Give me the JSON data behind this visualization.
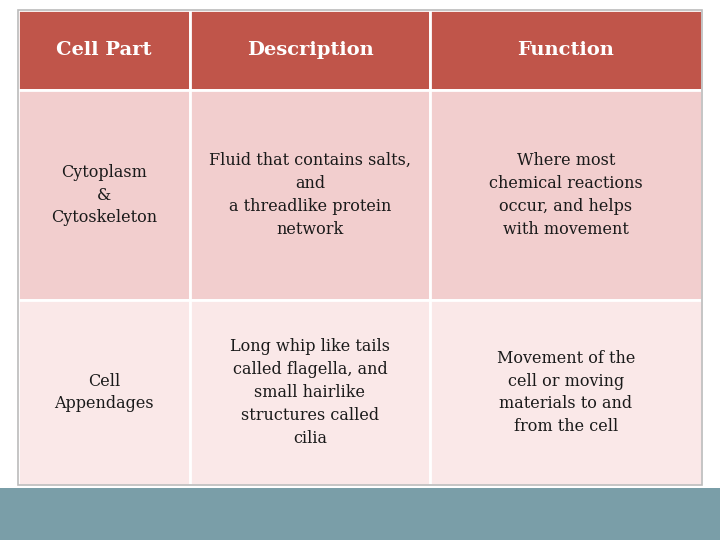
{
  "header_bg": "#C0554A",
  "header_text_color": "#FFFFFF",
  "row1_bg": "#F2CECE",
  "row2_bg": "#FAE8E8",
  "body_text_color": "#1A1A1A",
  "border_color": "#FFFFFF",
  "bottom_bar_color": "#7A9EA8",
  "outer_border_color": "#BBBBBB",
  "figure_bg": "#FFFFFF",
  "header_text": [
    "Cell Part",
    "Description",
    "Function"
  ],
  "header_fontsize": 14,
  "body_fontsize": 11.5,
  "col1_row1_text": "Cytoplasm\n&\nCytoskeleton",
  "col2_row1_text": "Fluid that contains salts,\nand\na threadlike protein\nnetwork",
  "col3_row1_text": "Where most\nchemical reactions\noccur, and helps\nwith movement",
  "col1_row2_text": "Cell\nAppendages",
  "col2_row2_text": "Long whip like tails\ncalled flagella, and\nsmall hairlike\nstructures called\ncilia",
  "col3_row2_text": "Movement of the\ncell or moving\nmaterials to and\nfrom the cell"
}
